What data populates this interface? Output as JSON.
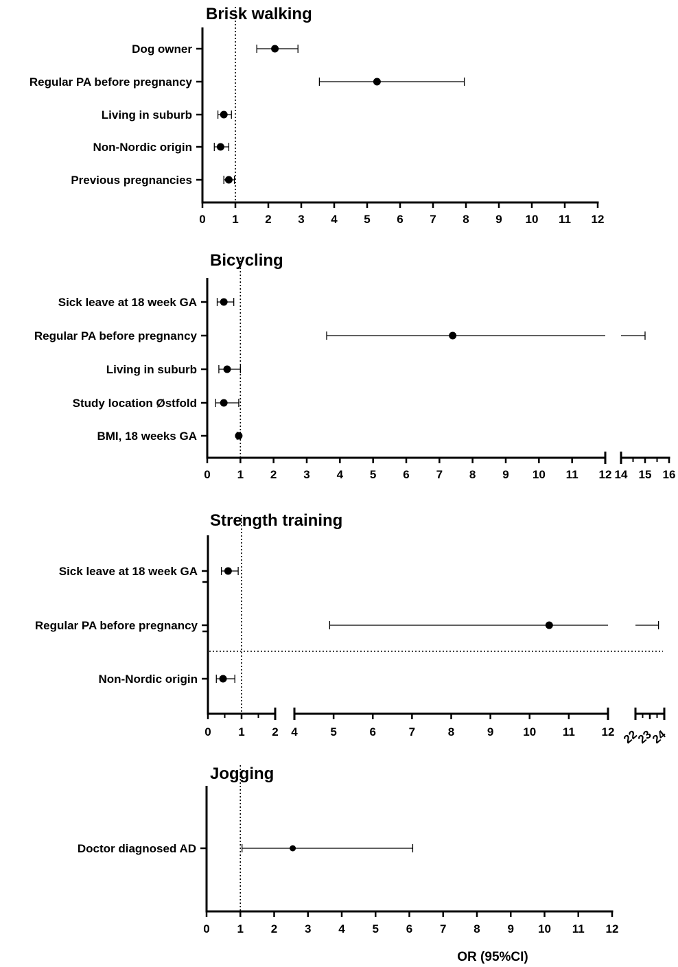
{
  "x_axis_label": "OR (95%CI)",
  "chart_data": [
    {
      "type": "forest",
      "title": "Brisk walking",
      "reference_line": 1,
      "xlim": [
        0,
        12
      ],
      "x_ticks": [
        "0",
        "1",
        "2",
        "3",
        "4",
        "5",
        "6",
        "7",
        "8",
        "9",
        "10",
        "11",
        "12"
      ],
      "rows": [
        {
          "label": "Dog owner",
          "or": 2.2,
          "lo": 1.65,
          "hi": 2.9
        },
        {
          "label": "Regular PA before pregnancy",
          "or": 5.3,
          "lo": 3.55,
          "hi": 7.95
        },
        {
          "label": "Living in suburb",
          "or": 0.65,
          "lo": 0.47,
          "hi": 0.88
        },
        {
          "label": "Non-Nordic origin",
          "or": 0.55,
          "lo": 0.36,
          "hi": 0.8
        },
        {
          "label": "Previous pregnancies",
          "or": 0.8,
          "lo": 0.65,
          "hi": 0.97
        }
      ]
    },
    {
      "type": "forest",
      "title": "Bicycling",
      "reference_line": 1,
      "xlim": [
        0,
        16
      ],
      "axis_break": [
        12,
        14
      ],
      "x_ticks": [
        "0",
        "1",
        "2",
        "3",
        "4",
        "5",
        "6",
        "7",
        "8",
        "9",
        "10",
        "11",
        "12",
        "14",
        "15",
        "16"
      ],
      "rows": [
        {
          "label": "Sick leave at 18 week GA",
          "or": 0.5,
          "lo": 0.3,
          "hi": 0.8
        },
        {
          "label": "Regular PA before pregnancy",
          "or": 7.4,
          "lo": 3.6,
          "hi": 15
        },
        {
          "label": "Living in suburb",
          "or": 0.6,
          "lo": 0.35,
          "hi": 1.0
        },
        {
          "label": "Study location Østfold",
          "or": 0.5,
          "lo": 0.25,
          "hi": 0.95
        },
        {
          "label": "BMI, 18 weeks GA",
          "or": 0.95,
          "lo": 0.9,
          "hi": 1.0
        }
      ]
    },
    {
      "type": "forest",
      "title": "Strength training",
      "reference_line": 1,
      "xlim": [
        0,
        24
      ],
      "axis_breaks": [
        [
          2,
          4
        ],
        [
          12,
          22
        ]
      ],
      "x_ticks": [
        "0",
        "1",
        "2",
        "4",
        "5",
        "6",
        "7",
        "8",
        "9",
        "10",
        "11",
        "12",
        "22",
        "23",
        "24"
      ],
      "rows": [
        {
          "label": "Sick leave at 18 week GA",
          "or": 0.6,
          "lo": 0.4,
          "hi": 0.9
        },
        {
          "label": "Regular PA before pregnancy",
          "or": 10.5,
          "lo": 4.9,
          "hi": 23.6
        },
        {
          "label": "Non-Nordic origin",
          "or": 0.45,
          "lo": 0.25,
          "hi": 0.8
        }
      ]
    },
    {
      "type": "forest",
      "title": "Jogging",
      "reference_line": 1,
      "xlim": [
        0,
        12
      ],
      "x_ticks": [
        "0",
        "1",
        "2",
        "3",
        "4",
        "5",
        "6",
        "7",
        "8",
        "9",
        "10",
        "11",
        "12"
      ],
      "rows": [
        {
          "label": "Doctor diagnosed AD",
          "or": 2.55,
          "lo": 1.05,
          "hi": 6.1
        }
      ]
    }
  ]
}
